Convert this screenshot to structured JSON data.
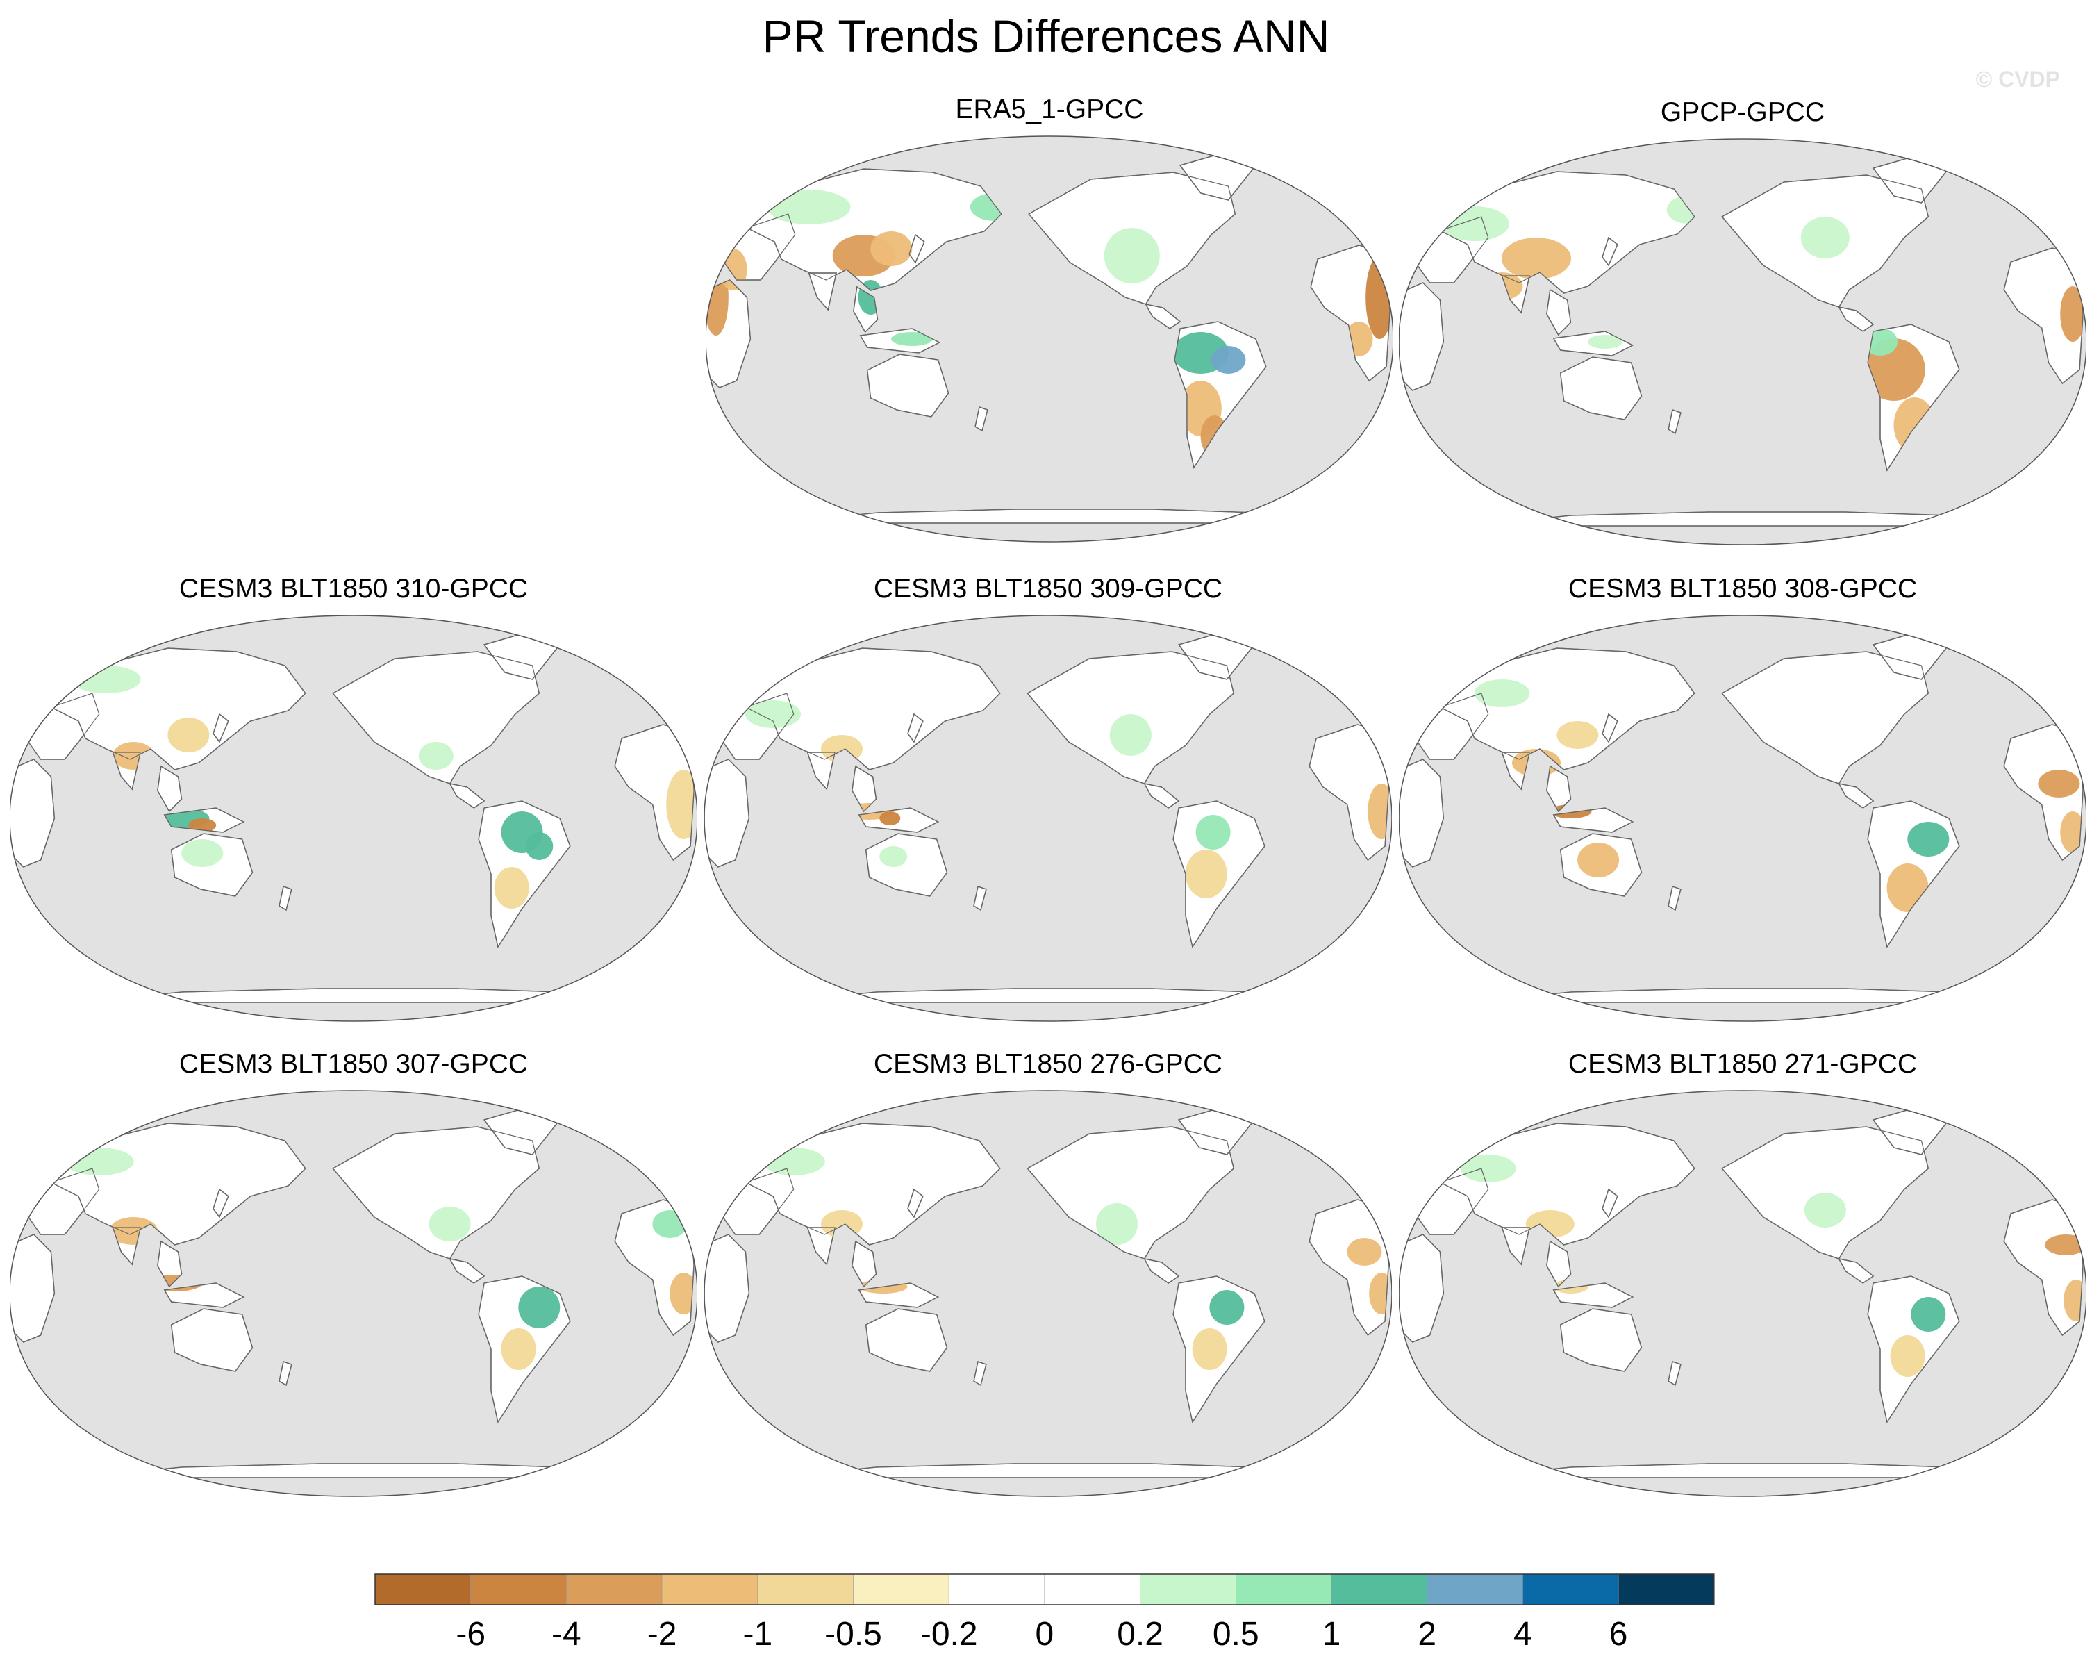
{
  "title": "PR Trends Differences ANN",
  "watermark": "© CVDP",
  "colors": {
    "ocean": "#e2e2e2",
    "land": "#ffffff",
    "coast": "#666666"
  },
  "panels": [
    {
      "id": "era5",
      "title": "ERA5_1-GPCC"
    },
    {
      "id": "gpcp",
      "title": "GPCP-GPCC"
    },
    {
      "id": "m310",
      "title": "CESM3 BLT1850 310-GPCC"
    },
    {
      "id": "m309",
      "title": "CESM3 BLT1850 309-GPCC"
    },
    {
      "id": "m308",
      "title": "CESM3 BLT1850 308-GPCC"
    },
    {
      "id": "m307",
      "title": "CESM3 BLT1850 307-GPCC"
    },
    {
      "id": "m276",
      "title": "CESM3 BLT1850 276-GPCC"
    },
    {
      "id": "m271",
      "title": "CESM3 BLT1850 271-GPCC"
    }
  ],
  "colorbar": {
    "colors": [
      "#b36b2b",
      "#cc8540",
      "#db9d5a",
      "#edbd78",
      "#f2d898",
      "#faf0bf",
      "#ffffff",
      "#ffffff",
      "#c8f6cb",
      "#96e8b4",
      "#54bd9c",
      "#6fa6c8",
      "#0a6aa8",
      "#043a5c"
    ],
    "labels": [
      "-6",
      "-4",
      "-2",
      "-1",
      "-0.5",
      "-0.2",
      "0",
      "0.2",
      "0.5",
      "1",
      "2",
      "4",
      "6"
    ]
  }
}
